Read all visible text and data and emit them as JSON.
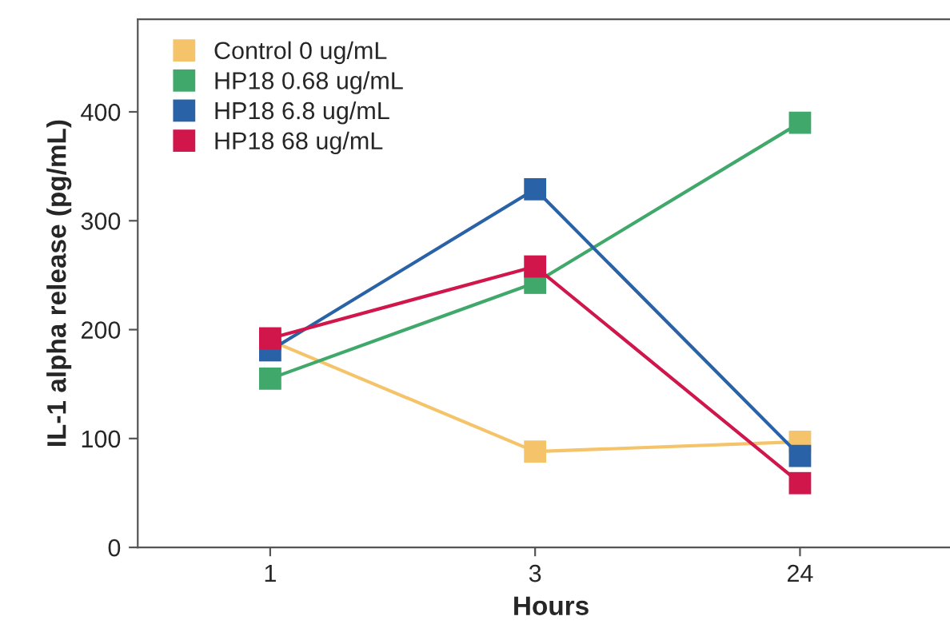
{
  "chart_data": {
    "type": "line",
    "xlabel": "Hours",
    "ylabel": "IL-1 alpha release (pg/mL)",
    "categories": [
      "1",
      "3",
      "24"
    ],
    "series": [
      {
        "name": "Control 0 ug/mL",
        "color": "#f5c46a",
        "values": [
          190,
          88,
          97
        ]
      },
      {
        "name": "HP18 0.68 ug/mL",
        "color": "#3fa86a",
        "values": [
          155,
          243,
          390
        ]
      },
      {
        "name": "HP18 6.8 ug/mL",
        "color": "#2a62a8",
        "values": [
          181,
          329,
          84
        ]
      },
      {
        "name": "HP18 68 ug/mL",
        "color": "#d0164a",
        "values": [
          192,
          258,
          59
        ]
      }
    ],
    "ylim": [
      0,
      485
    ],
    "yticks": [
      0,
      100,
      200,
      300,
      400
    ],
    "marker": "square",
    "legend": "top left",
    "grid": false
  }
}
